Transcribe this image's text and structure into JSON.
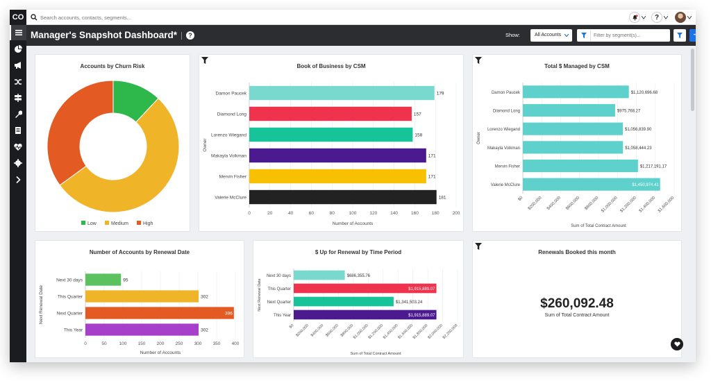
{
  "app": {
    "logo": "CO",
    "title": "Manager's Snapshot Dashboard*"
  },
  "search": {
    "placeholder": "Search accounts, contacts, segments..."
  },
  "sidebar": {
    "items": [
      {
        "icon": "list-icon"
      },
      {
        "icon": "pie-chart-icon"
      },
      {
        "icon": "megaphone-icon"
      },
      {
        "icon": "shuffle-icon"
      },
      {
        "icon": "signpost-icon"
      },
      {
        "icon": "wrench-icon"
      },
      {
        "icon": "document-icon"
      },
      {
        "icon": "heartbeat-icon"
      },
      {
        "icon": "gear-icon"
      },
      {
        "icon": "chevron-right-icon"
      }
    ]
  },
  "toolbar": {
    "show_label": "Show:",
    "show_value": "All Accounts",
    "segment_placeholder": "Filter by segment(s)...",
    "more_label": "•••"
  },
  "colors": {
    "accent": "#1a73e8",
    "dark": "#2b2d31"
  },
  "cards": {
    "churn": {
      "title": "Accounts by Churn Risk"
    },
    "bob": {
      "title": "Book of Business by CSM"
    },
    "managed": {
      "title": "Total $ Managed by CSM"
    },
    "renewal_date": {
      "title": "Number of Accounts by Renewal Date"
    },
    "up_renewal": {
      "title": "$ Up for Renewal by Time Period"
    },
    "booked": {
      "title": "Renewals Booked this month",
      "value": "$260,092.48",
      "caption": "Sum of Total Contract Amount"
    }
  },
  "chart_data": [
    {
      "id": "churn",
      "type": "pie",
      "donut": true,
      "categories": [
        "Low",
        "Medium",
        "High"
      ],
      "values": [
        12,
        53,
        35
      ],
      "colors": [
        "#2eb84b",
        "#f0b429",
        "#e35a22"
      ],
      "legend": "bottom"
    },
    {
      "id": "bob",
      "type": "bar",
      "orientation": "horizontal",
      "categories": [
        "Damon Paucek",
        "Diamond Long",
        "Lorenzo Wiegand",
        "Makayla Volkman",
        "Mervin Fisher",
        "Valerie McClure"
      ],
      "values": [
        179,
        157,
        158,
        171,
        171,
        181
      ],
      "labels": [
        "179",
        "157",
        "158",
        "171",
        "171",
        "181"
      ],
      "colors": [
        "#7ad9cf",
        "#f0334d",
        "#17c49a",
        "#4b1a8f",
        "#f7c000",
        "#222222"
      ],
      "xlabel": "Number of Accounts",
      "ylabel": "Owner",
      "xlim": [
        0,
        200
      ],
      "xticks": [
        "0",
        "20",
        "40",
        "60",
        "80",
        "100",
        "120",
        "140",
        "160",
        "180",
        "200"
      ]
    },
    {
      "id": "managed",
      "type": "bar",
      "orientation": "horizontal",
      "categories": [
        "Damon Paucek",
        "Diamond Long",
        "Lorenzo Wiegand",
        "Makayla Volkman",
        "Mervin Fisher",
        "Valerie McClure"
      ],
      "values": [
        1120696.68,
        975768.27,
        1056839.9,
        1058444.23,
        1217191.17,
        1450974.41
      ],
      "labels": [
        "$1,120,696.68",
        "$975,768.27",
        "$1,056,839.90",
        "$1,058,444.23",
        "$1,217,191.17",
        "$1,450,974.41"
      ],
      "colors": [
        "#5ed1cc",
        "#5ed1cc",
        "#5ed1cc",
        "#5ed1cc",
        "#5ed1cc",
        "#5ed1cc"
      ],
      "xlabel": "Sum of Total Contract Amount",
      "ylabel": "Owner",
      "xlim": [
        0,
        1600000
      ],
      "xticks": [
        "$0",
        "$200,000",
        "$400,000",
        "$600,000",
        "$800,000",
        "$1,000,000",
        "$1,200,000",
        "$1,400,000",
        "$1,600,000"
      ]
    },
    {
      "id": "renewal_date",
      "type": "bar",
      "orientation": "horizontal",
      "categories": [
        "Next 30 days",
        "This Quarter",
        "Next Quarter",
        "This Year"
      ],
      "values": [
        95,
        302,
        396,
        302
      ],
      "labels": [
        "95",
        "302",
        "396",
        "302"
      ],
      "colors": [
        "#5cc15f",
        "#f0b429",
        "#e35a22",
        "#a63fc9"
      ],
      "xlabel": "Number of Accounts",
      "ylabel": "Next Renewal Date",
      "xlim": [
        0,
        400
      ],
      "xticks": [
        "0",
        "50",
        "100",
        "150",
        "200",
        "250",
        "300",
        "350",
        "400"
      ]
    },
    {
      "id": "up_renewal",
      "type": "bar",
      "orientation": "horizontal",
      "categories": [
        "Next 30 days",
        "This Quarter",
        "Next Quarter",
        "This Year"
      ],
      "values": [
        686355.76,
        1915889.07,
        1341503.24,
        1915889.07
      ],
      "labels": [
        "$686,355.76",
        "$1,915,889.07",
        "$1,341,503.24",
        "$1,915,889.07"
      ],
      "colors": [
        "#7ad9cf",
        "#f0334d",
        "#17c49a",
        "#4b1a8f"
      ],
      "xlabel": "Sum of Total Contract Amount",
      "ylabel": "Next Renewal Date",
      "xlim": [
        0,
        2200000
      ],
      "xticks": [
        "$0",
        "$200,000",
        "$400,000",
        "$600,000",
        "$800,000",
        "$1,000,000",
        "$1,200,000",
        "$1,400,000",
        "$1,600,000",
        "$1,800,000",
        "$2,000,000",
        "$2,200,000"
      ]
    }
  ]
}
